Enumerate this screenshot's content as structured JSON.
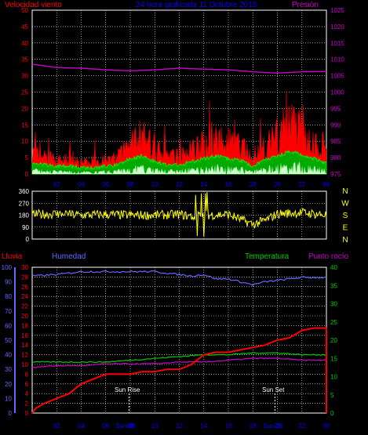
{
  "header": {
    "wind_label": "Velocidad viento",
    "title": "24 hora graficada 11 Octubre 2015",
    "pressure_label": "Presión"
  },
  "bottom_header": {
    "rain_label": "Lluvia",
    "humidity_label": "Humedad",
    "temperature_label": "Temperatura",
    "dewpoint_label": "Punto rocío"
  },
  "annotations": {
    "sun_rise": "Sun Rise",
    "sun_set": "Sun Set",
    "sun_rise_time": "Sun 08",
    "sun_set_time": "Sun 20"
  },
  "colors": {
    "background": "#000000",
    "grid": "#ffffff",
    "wind": "#ff0000",
    "gust_avg": "#00ff00",
    "wind_fill": "#ffffff",
    "pressure": "#cc00cc",
    "direction": "#ffff00",
    "rain": "#ff0000",
    "humidity": "#6666ff",
    "temperature": "#00cc00",
    "dewpoint": "#cc00cc",
    "title": "#0000ff",
    "tick_hour": "#0000ff"
  },
  "chart_data": [
    {
      "type": "area",
      "name": "wind-pressure",
      "x_ticks": [
        "02",
        "04",
        "06",
        "08",
        "10",
        "12",
        "14",
        "16",
        "18",
        "20",
        "22",
        "00"
      ],
      "x_range": [
        0,
        24
      ],
      "left_axis": {
        "ticks": [
          0,
          5,
          10,
          15,
          20,
          25,
          30,
          35,
          40,
          45,
          50
        ],
        "ylim": [
          0,
          50
        ]
      },
      "right_axis": {
        "ticks": [
          975,
          980,
          985,
          990,
          995,
          1000,
          1005,
          1010,
          1015,
          1020,
          1025
        ],
        "ylim": [
          975,
          1025
        ]
      },
      "series": [
        {
          "name": "Velocidad viento",
          "axis": "left",
          "hours": [
            0,
            1,
            2,
            3,
            4,
            5,
            6,
            7,
            8,
            9,
            10,
            11,
            12,
            13,
            14,
            15,
            16,
            17,
            18,
            19,
            20,
            21,
            22,
            23,
            24
          ],
          "values": [
            6,
            5,
            4,
            4,
            3,
            3,
            4,
            5,
            9,
            11,
            7,
            5,
            5,
            7,
            9,
            11,
            9,
            8,
            4,
            8,
            11,
            14,
            12,
            9,
            6
          ]
        },
        {
          "name": "Presión",
          "axis": "right",
          "hours": [
            0,
            2,
            4,
            6,
            8,
            10,
            12,
            14,
            16,
            18,
            20,
            22,
            24
          ],
          "values": [
            1008.5,
            1007.5,
            1007.3,
            1006.8,
            1006.5,
            1006.8,
            1007.3,
            1007,
            1006.8,
            1006.2,
            1005.8,
            1006.2,
            1006.3
          ]
        }
      ],
      "grid": true
    },
    {
      "type": "line",
      "name": "wind-direction",
      "x_range": [
        0,
        24
      ],
      "y_ticks": [
        0,
        90,
        180,
        270,
        360
      ],
      "ylim": [
        0,
        360
      ],
      "compass": [
        "N",
        "W",
        "S",
        "E",
        "N"
      ],
      "series": [
        {
          "name": "direction",
          "hours": [
            0,
            2,
            4,
            6,
            8,
            10,
            12,
            13,
            14,
            16,
            18,
            19,
            20,
            22,
            24
          ],
          "values": [
            185,
            190,
            180,
            185,
            180,
            180,
            185,
            170,
            180,
            185,
            110,
            140,
            190,
            200,
            180
          ]
        }
      ],
      "grid": true
    },
    {
      "type": "line",
      "name": "rain-humidity-temperature",
      "x_range": [
        0,
        24
      ],
      "left_axis_humidity": {
        "ticks": [
          0,
          10,
          20,
          30,
          40,
          50,
          60,
          70,
          80,
          90,
          100
        ],
        "ylim": [
          0,
          100
        ]
      },
      "left_axis_rain": {
        "ticks": [
          0,
          2,
          4,
          6,
          8,
          10,
          12,
          14,
          16,
          18,
          20,
          22,
          24,
          26,
          28,
          30
        ],
        "ylim": [
          0,
          30
        ]
      },
      "right_axis_temp": {
        "ticks": [
          0,
          5,
          10,
          15,
          20,
          25,
          30,
          35,
          40
        ],
        "ylim": [
          0,
          40
        ]
      },
      "series": [
        {
          "name": "Lluvia",
          "axis": "rain",
          "hours": [
            0,
            0.3,
            1,
            2,
            3,
            4,
            5,
            6,
            7,
            8,
            9,
            10,
            11,
            12,
            13,
            13.5,
            14,
            15,
            16,
            17,
            18,
            19,
            20,
            21,
            22,
            23,
            24,
            24
          ],
          "values": [
            0,
            1,
            2,
            3,
            4,
            6,
            7,
            8,
            8,
            8,
            8.5,
            8.5,
            9,
            9,
            10,
            11,
            12,
            12.5,
            12.5,
            13,
            13.5,
            14,
            15,
            15.5,
            17,
            17.5,
            17.5,
            0
          ]
        },
        {
          "name": "Humedad",
          "axis": "humidity",
          "hours": [
            0,
            2,
            4,
            6,
            8,
            10,
            12,
            13,
            14,
            15,
            16,
            17,
            18,
            19,
            20,
            22,
            24
          ],
          "values": [
            94,
            95,
            97,
            97,
            97,
            97,
            95,
            94,
            95,
            92,
            92,
            90,
            88,
            90,
            91,
            93,
            93
          ]
        },
        {
          "name": "Temperatura",
          "axis": "temp",
          "hours": [
            0,
            2,
            4,
            6,
            8,
            10,
            12,
            14,
            16,
            18,
            20,
            22,
            24
          ],
          "values": [
            14,
            14,
            14,
            14,
            14.5,
            15,
            15.5,
            16,
            16,
            16.5,
            16.5,
            16,
            16
          ]
        },
        {
          "name": "Punto rocío",
          "axis": "temp",
          "hours": [
            0,
            2,
            4,
            6,
            8,
            10,
            12,
            14,
            16,
            18,
            20,
            22,
            24
          ],
          "values": [
            12.5,
            13,
            13,
            13.5,
            13.5,
            13.5,
            14,
            14,
            14.5,
            15,
            15,
            14.5,
            14.5
          ]
        }
      ],
      "grid": true
    }
  ]
}
